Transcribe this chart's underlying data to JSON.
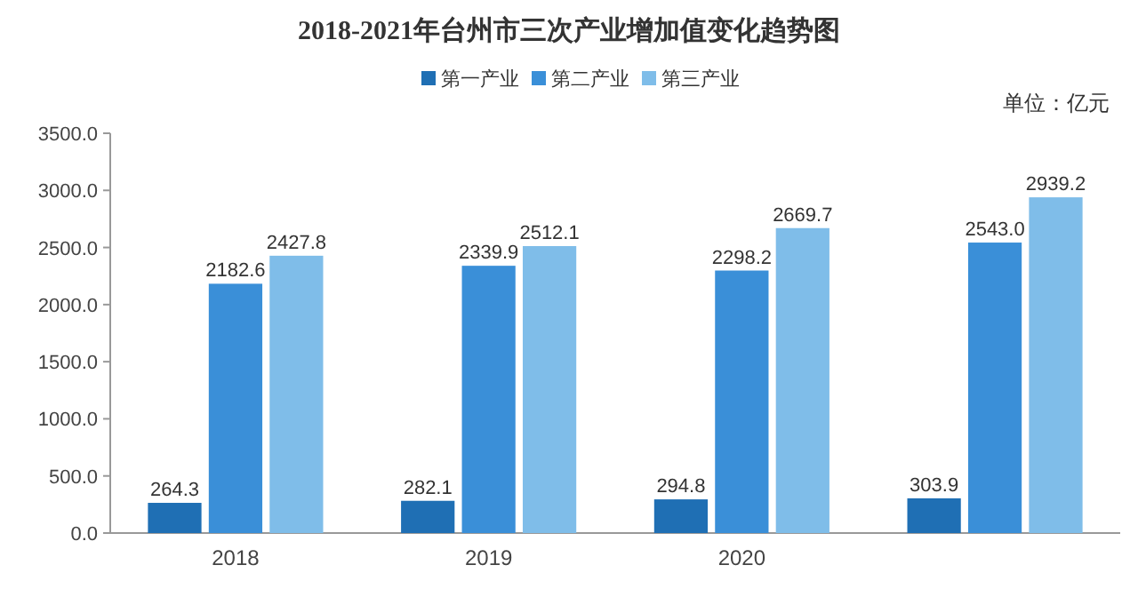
{
  "chart_data": {
    "type": "bar",
    "title": "2018-2021年台州市三次产业增加值变化趋势图",
    "annotations": [
      "单位：亿元"
    ],
    "categories": [
      "2018",
      "2019",
      "2020",
      null
    ],
    "series": [
      {
        "name": "第一产业",
        "color": "#1f6fb4",
        "values": [
          264.3,
          282.1,
          294.8,
          303.9
        ],
        "value_labels": [
          "264.3",
          "282.1",
          "294.8",
          "303.9"
        ]
      },
      {
        "name": "第二产业",
        "color": "#3a8fd8",
        "values": [
          2182.6,
          2339.9,
          2298.2,
          2543.0
        ],
        "value_labels": [
          "2182.6",
          "2339.9",
          "2298.2",
          "2543.0"
        ]
      },
      {
        "name": "第三产业",
        "color": "#7fbde9",
        "values": [
          2427.8,
          2512.1,
          2669.7,
          2939.2
        ],
        "value_labels": [
          "2427.8",
          "2512.1",
          "2669.7",
          "2939.2"
        ]
      }
    ],
    "ylim": [
      0,
      3500
    ],
    "yticks": [
      {
        "value": 0,
        "label": "0.0"
      },
      {
        "value": 500,
        "label": "500.0"
      },
      {
        "value": 1000,
        "label": "1000.0"
      },
      {
        "value": 1500,
        "label": "1500.0"
      },
      {
        "value": 2000,
        "label": "2000.0"
      },
      {
        "value": 2500,
        "label": "2500.0"
      },
      {
        "value": 3000,
        "label": "3000.0"
      },
      {
        "value": 3500,
        "label": "3500.0"
      }
    ],
    "legend": "top"
  }
}
